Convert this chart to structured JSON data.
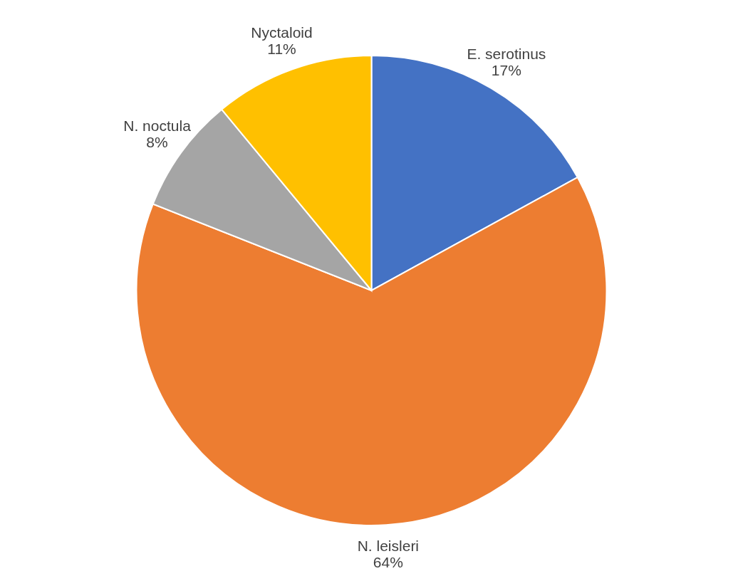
{
  "chart_data": {
    "type": "pie",
    "categories": [
      "E. serotinus",
      "N. leisleri",
      "N. noctula",
      "Nyctaloid"
    ],
    "values": [
      17,
      64,
      8,
      11
    ],
    "value_labels": [
      "17%",
      "64%",
      "8%",
      "11%"
    ],
    "colors": [
      "#4472c4",
      "#ed7d31",
      "#a5a5a5",
      "#ffc000"
    ]
  }
}
